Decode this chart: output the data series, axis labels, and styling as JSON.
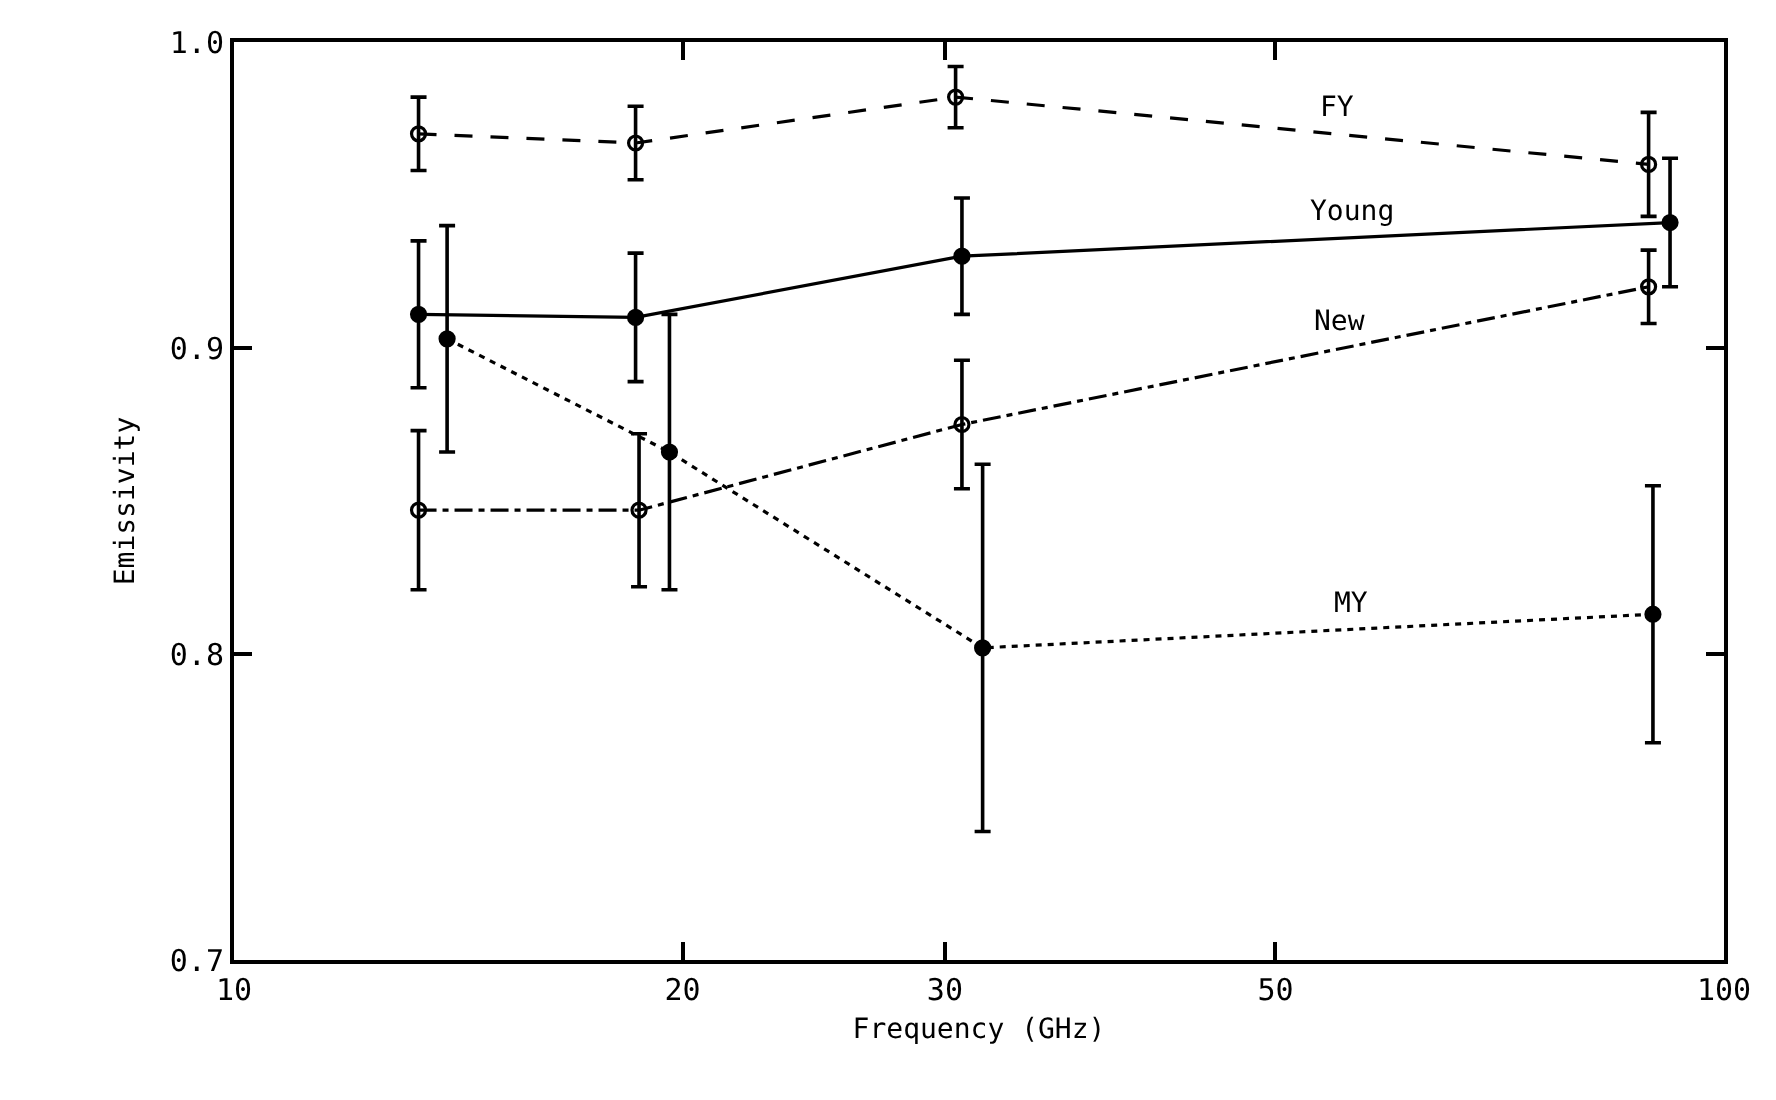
{
  "chart_data": {
    "type": "line",
    "xlabel": "Frequency (GHz)",
    "ylabel": "Emissivity",
    "log": "x",
    "xlim": [
      10,
      100
    ],
    "xticks": [
      10,
      20,
      30,
      50,
      100
    ],
    "ylim": [
      0.7,
      1.0
    ],
    "yticks": [
      {
        "value": 0.7,
        "label": "0.7"
      },
      {
        "value": 0.8,
        "label": "0.8"
      },
      {
        "value": 0.9,
        "label": "0.9"
      },
      {
        "value": 1.0,
        "label": "1.0"
      }
    ],
    "grid": false,
    "series": [
      {
        "name": "FY",
        "color": "#000000",
        "line_style": "dashed",
        "marker": "circle-open",
        "x": [
          13.3,
          18.6,
          30.5,
          89
        ],
        "values": [
          0.97,
          0.967,
          0.982,
          0.96
        ],
        "errors": [
          0.012,
          0.012,
          0.01,
          0.017
        ]
      },
      {
        "name": "Young",
        "color": "#000000",
        "line_style": "solid",
        "marker": "circle",
        "x": [
          13.3,
          18.6,
          30.8,
          92
        ],
        "values": [
          0.911,
          0.91,
          0.93,
          0.941
        ],
        "errors": [
          0.024,
          0.021,
          0.019,
          0.021
        ]
      },
      {
        "name": "New",
        "color": "#000000",
        "line_style": "dashdot",
        "marker": "circle-open",
        "x": [
          13.3,
          18.7,
          30.8,
          89
        ],
        "values": [
          0.847,
          0.847,
          0.875,
          0.92
        ],
        "errors": [
          0.026,
          0.025,
          0.021,
          0.012
        ]
      },
      {
        "name": "MY",
        "color": "#000000",
        "line_style": "dotted",
        "marker": "circle",
        "x": [
          13.9,
          19.6,
          31.8,
          89.6
        ],
        "values": [
          0.903,
          0.866,
          0.802,
          0.813
        ],
        "errors": [
          0.037,
          0.045,
          0.06,
          0.042
        ]
      }
    ]
  }
}
